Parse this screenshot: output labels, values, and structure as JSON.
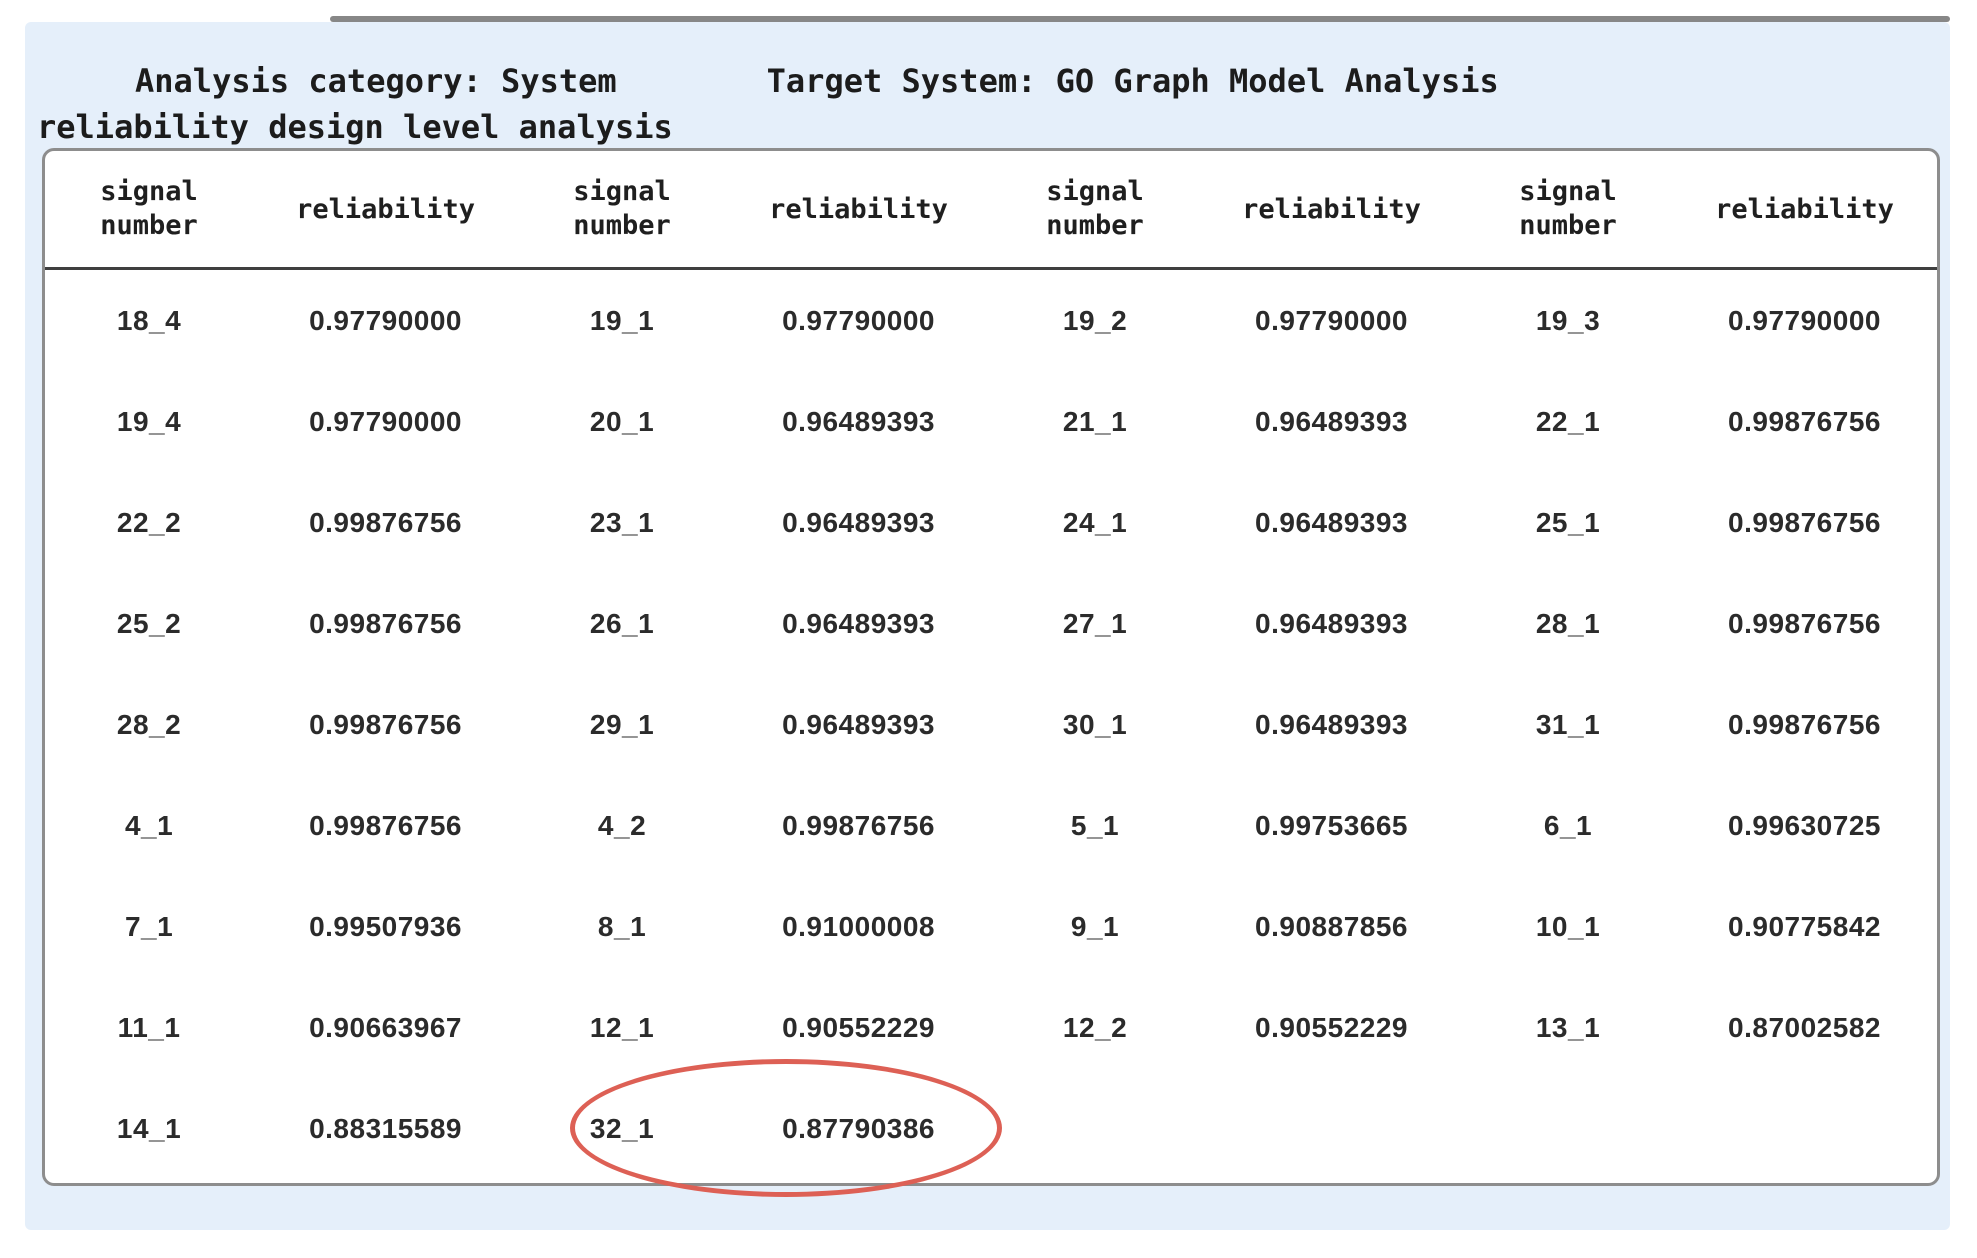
{
  "page": {
    "title_line1_left": "Analysis category: System",
    "title_line1_right": "Target System: GO Graph Model Analysis",
    "title_line2": "reliability design level analysis"
  },
  "table": {
    "header": {
      "groups": 4,
      "signal_label": "signal number",
      "reliability_label": "reliability"
    },
    "rows": [
      [
        {
          "signal": "18_4",
          "reliability": "0.97790000"
        },
        {
          "signal": "19_1",
          "reliability": "0.97790000"
        },
        {
          "signal": "19_2",
          "reliability": "0.97790000"
        },
        {
          "signal": "19_3",
          "reliability": "0.97790000"
        }
      ],
      [
        {
          "signal": "19_4",
          "reliability": "0.97790000"
        },
        {
          "signal": "20_1",
          "reliability": "0.96489393"
        },
        {
          "signal": "21_1",
          "reliability": "0.96489393"
        },
        {
          "signal": "22_1",
          "reliability": "0.99876756"
        }
      ],
      [
        {
          "signal": "22_2",
          "reliability": "0.99876756"
        },
        {
          "signal": "23_1",
          "reliability": "0.96489393"
        },
        {
          "signal": "24_1",
          "reliability": "0.96489393"
        },
        {
          "signal": "25_1",
          "reliability": "0.99876756"
        }
      ],
      [
        {
          "signal": "25_2",
          "reliability": "0.99876756"
        },
        {
          "signal": "26_1",
          "reliability": "0.96489393"
        },
        {
          "signal": "27_1",
          "reliability": "0.96489393"
        },
        {
          "signal": "28_1",
          "reliability": "0.99876756"
        }
      ],
      [
        {
          "signal": "28_2",
          "reliability": "0.99876756"
        },
        {
          "signal": "29_1",
          "reliability": "0.96489393"
        },
        {
          "signal": "30_1",
          "reliability": "0.96489393"
        },
        {
          "signal": "31_1",
          "reliability": "0.99876756"
        }
      ],
      [
        {
          "signal": "4_1",
          "reliability": "0.99876756"
        },
        {
          "signal": "4_2",
          "reliability": "0.99876756"
        },
        {
          "signal": "5_1",
          "reliability": "0.99753665"
        },
        {
          "signal": "6_1",
          "reliability": "0.99630725"
        }
      ],
      [
        {
          "signal": "7_1",
          "reliability": "0.99507936"
        },
        {
          "signal": "8_1",
          "reliability": "0.91000008"
        },
        {
          "signal": "9_1",
          "reliability": "0.90887856"
        },
        {
          "signal": "10_1",
          "reliability": "0.90775842"
        }
      ],
      [
        {
          "signal": "11_1",
          "reliability": "0.90663967"
        },
        {
          "signal": "12_1",
          "reliability": "0.90552229"
        },
        {
          "signal": "12_2",
          "reliability": "0.90552229"
        },
        {
          "signal": "13_1",
          "reliability": "0.87002582"
        }
      ],
      [
        {
          "signal": "14_1",
          "reliability": "0.88315589"
        },
        {
          "signal": "32_1",
          "reliability": "0.87790386"
        },
        {
          "signal": "",
          "reliability": ""
        },
        {
          "signal": "",
          "reliability": ""
        }
      ]
    ]
  },
  "highlight": {
    "shape": "ellipse",
    "color": "#dd6055",
    "target_signal": "32_1",
    "target_reliability": "0.87790386"
  },
  "colors": {
    "panel_bg": "#e5effa",
    "table_border": "#8d8d8d",
    "header_rule": "#3f3f3f",
    "text": "#2b2b2b"
  }
}
